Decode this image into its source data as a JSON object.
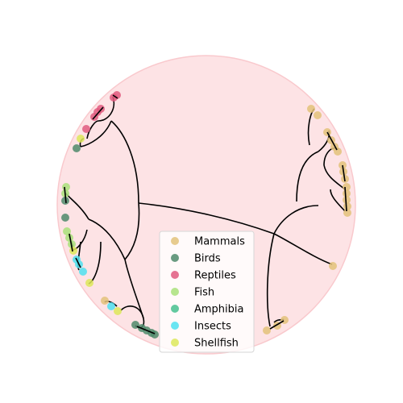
{
  "legend": {
    "items": [
      {
        "label": "Mammals",
        "color": "#e3c27a"
      },
      {
        "label": "Birds",
        "color": "#4f8a6b"
      },
      {
        "label": "Reptiles",
        "color": "#e05a7f"
      },
      {
        "label": "Fish",
        "color": "#a9e07a"
      },
      {
        "label": "Amphibia",
        "color": "#46c08e"
      },
      {
        "label": "Insects",
        "color": "#4fe0f0"
      },
      {
        "label": "Shellfish",
        "color": "#dde85a"
      }
    ]
  },
  "colors": {
    "disc_fill": "#fde3e5",
    "disc_stroke": "#f9c9cd",
    "branch": "#000000"
  }
}
